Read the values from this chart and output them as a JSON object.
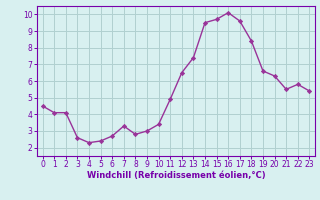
{
  "x": [
    0,
    1,
    2,
    3,
    4,
    5,
    6,
    7,
    8,
    9,
    10,
    11,
    12,
    13,
    14,
    15,
    16,
    17,
    18,
    19,
    20,
    21,
    22,
    23
  ],
  "y": [
    4.5,
    4.1,
    4.1,
    2.6,
    2.3,
    2.4,
    2.7,
    3.3,
    2.8,
    3.0,
    3.4,
    4.9,
    6.5,
    7.4,
    9.5,
    9.7,
    10.1,
    9.6,
    8.4,
    6.6,
    6.3,
    5.5,
    5.8,
    5.4
  ],
  "line_color": "#993399",
  "marker": "D",
  "marker_size": 2.2,
  "line_width": 1.0,
  "bg_color": "#d8f0f0",
  "grid_color": "#b0d0d0",
  "xlabel": "Windchill (Refroidissement éolien,°C)",
  "xlabel_color": "#7700aa",
  "tick_color": "#7700aa",
  "axis_color": "#7700aa",
  "ylim": [
    1.5,
    10.5
  ],
  "xlim": [
    -0.5,
    23.5
  ],
  "yticks": [
    2,
    3,
    4,
    5,
    6,
    7,
    8,
    9,
    10
  ],
  "xticks": [
    0,
    1,
    2,
    3,
    4,
    5,
    6,
    7,
    8,
    9,
    10,
    11,
    12,
    13,
    14,
    15,
    16,
    17,
    18,
    19,
    20,
    21,
    22,
    23
  ],
  "tick_labelsize": 5.5,
  "xlabel_fontsize": 6.0,
  "xlabel_fontweight": "bold"
}
